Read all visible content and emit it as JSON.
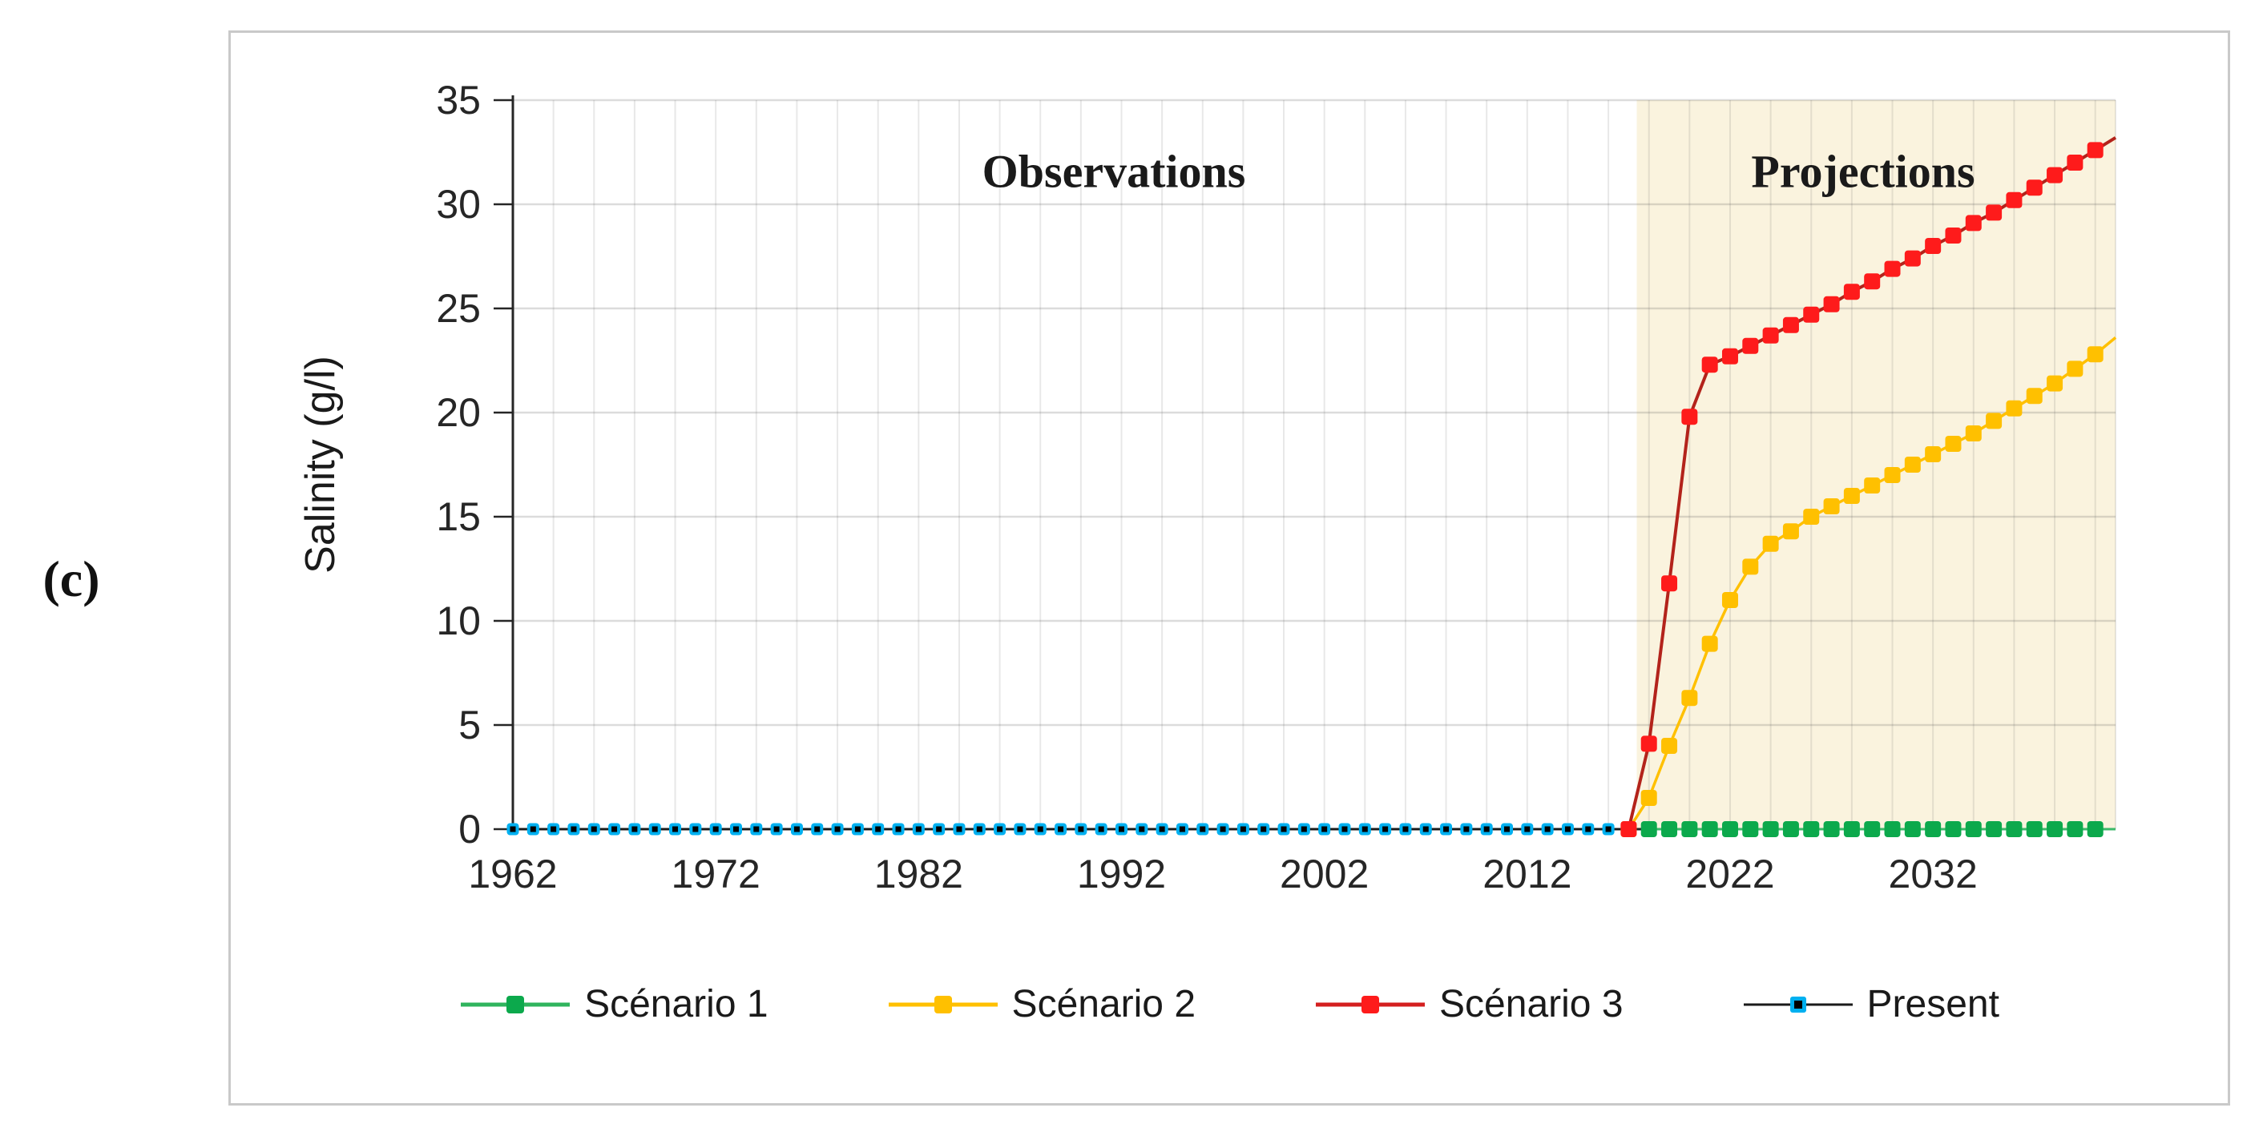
{
  "figure": {
    "panel_label": "(c)",
    "observations_label": "Observations",
    "projections_label": "Projections"
  },
  "chart_data": {
    "type": "line",
    "title": "",
    "xlabel": "",
    "ylabel": "Salinity (g/l)",
    "xlim": [
      1962,
      2041
    ],
    "ylim": [
      0,
      35
    ],
    "x_ticks": [
      1962,
      1972,
      1982,
      1992,
      2002,
      2012,
      2022,
      2032
    ],
    "y_ticks": [
      0,
      5,
      10,
      15,
      20,
      25,
      30,
      35
    ],
    "grid": {
      "x_step_years": 2,
      "y_step": 5,
      "visible": true
    },
    "projection_region": {
      "start_year": 2017.4,
      "fill": "#faf3de"
    },
    "legend_position": "bottom",
    "series": [
      {
        "name": "Present",
        "line_color": "#1a1a1a",
        "line_width": 2.5,
        "marker_color": "#00b0f0",
        "marker_inner_color": "#000000",
        "marker_size": 15,
        "marker_inner_size": 7,
        "years": [
          1962,
          1963,
          1964,
          1965,
          1966,
          1967,
          1968,
          1969,
          1970,
          1971,
          1972,
          1973,
          1974,
          1975,
          1976,
          1977,
          1978,
          1979,
          1980,
          1981,
          1982,
          1983,
          1984,
          1985,
          1986,
          1987,
          1988,
          1989,
          1990,
          1991,
          1992,
          1993,
          1994,
          1995,
          1996,
          1997,
          1998,
          1999,
          2000,
          2001,
          2002,
          2003,
          2004,
          2005,
          2006,
          2007,
          2008,
          2009,
          2010,
          2011,
          2012,
          2013,
          2014,
          2015,
          2016,
          2017
        ],
        "values": [
          0,
          0,
          0,
          0,
          0,
          0,
          0,
          0,
          0,
          0,
          0,
          0,
          0,
          0,
          0,
          0,
          0,
          0,
          0,
          0,
          0,
          0,
          0,
          0,
          0,
          0,
          0,
          0,
          0,
          0,
          0,
          0,
          0,
          0,
          0,
          0,
          0,
          0,
          0,
          0,
          0,
          0,
          0,
          0,
          0,
          0,
          0,
          0,
          0,
          0,
          0,
          0,
          0,
          0,
          0,
          0
        ]
      },
      {
        "name": "Scénario 1",
        "line_color": "#3cb96a",
        "line_width": 3,
        "marker_color": "#0ca94c",
        "marker_size": 20,
        "years": [
          2018,
          2019,
          2020,
          2021,
          2022,
          2023,
          2024,
          2025,
          2026,
          2027,
          2028,
          2029,
          2030,
          2031,
          2032,
          2033,
          2034,
          2035,
          2036,
          2037,
          2038,
          2039,
          2040
        ],
        "values": [
          0,
          0,
          0,
          0,
          0,
          0,
          0,
          0,
          0,
          0,
          0,
          0,
          0,
          0,
          0,
          0,
          0,
          0,
          0,
          0,
          0,
          0,
          0
        ],
        "extend": {
          "year": 2041,
          "value": 0
        }
      },
      {
        "name": "Scénario 2",
        "line_color": "#ffc000",
        "line_width": 3.5,
        "marker_color": "#ffc000",
        "marker_size": 20,
        "years": [
          2017,
          2018,
          2019,
          2020,
          2021,
          2022,
          2023,
          2024,
          2025,
          2026,
          2027,
          2028,
          2029,
          2030,
          2031,
          2032,
          2033,
          2034,
          2035,
          2036,
          2037,
          2038,
          2039,
          2040
        ],
        "values": [
          0,
          1.5,
          4.0,
          6.3,
          8.9,
          11.0,
          12.6,
          13.7,
          14.3,
          15.0,
          15.5,
          16.0,
          16.5,
          17.0,
          17.5,
          18.0,
          18.5,
          19.0,
          19.6,
          20.2,
          20.8,
          21.4,
          22.1,
          22.8
        ],
        "extend": {
          "year": 2041,
          "value": 23.6
        }
      },
      {
        "name": "Scénario 3",
        "line_color": "#b3231b",
        "line_width": 4,
        "marker_color": "#fe1b1b",
        "marker_size": 20,
        "years": [
          2017,
          2018,
          2019,
          2020,
          2021,
          2022,
          2023,
          2024,
          2025,
          2026,
          2027,
          2028,
          2029,
          2030,
          2031,
          2032,
          2033,
          2034,
          2035,
          2036,
          2037,
          2038,
          2039,
          2040
        ],
        "values": [
          0,
          4.1,
          11.8,
          19.8,
          22.3,
          22.7,
          23.2,
          23.7,
          24.2,
          24.7,
          25.2,
          25.8,
          26.3,
          26.9,
          27.4,
          28.0,
          28.5,
          29.1,
          29.6,
          30.2,
          30.8,
          31.4,
          32.0,
          32.6
        ],
        "extend": {
          "year": 2041,
          "value": 33.2
        }
      }
    ]
  },
  "legend": {
    "items": [
      {
        "label": "Scénario 1",
        "line_color": "#2fb45d",
        "marker_color": "#0ca94c"
      },
      {
        "label": "Scénario 2",
        "line_color": "#ffc000",
        "marker_color": "#ffc000"
      },
      {
        "label": "Scénario 3",
        "line_color": "#d41f1f",
        "marker_color": "#fe1b1b"
      },
      {
        "label": "Present",
        "line_color": "#1a1a1a",
        "marker_color": "#00b0f0",
        "marker_inner_color": "#000000"
      }
    ]
  }
}
